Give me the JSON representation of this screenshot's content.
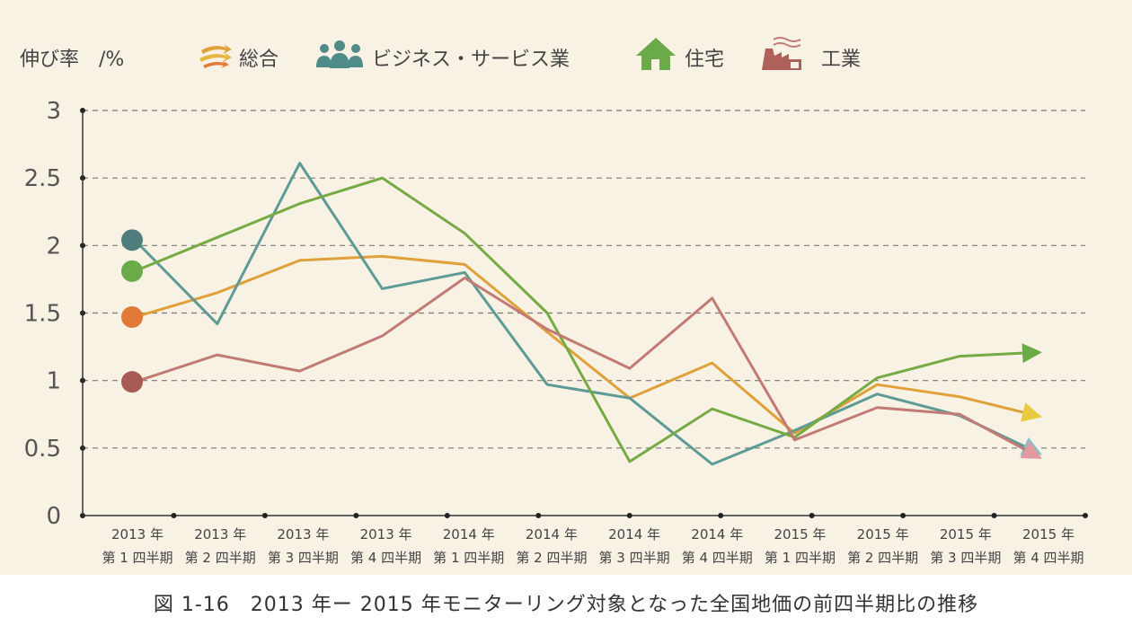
{
  "caption": "図 1-16　2013 年ー 2015 年モニターリング対象となった全国地価の前四半期比の推移",
  "chart_data": {
    "type": "line",
    "ylabel": "伸び率　/%",
    "ylim": [
      0,
      3
    ],
    "yticks": [
      "0",
      "0.5",
      "1",
      "1.5",
      "2",
      "2.5",
      "3"
    ],
    "ytick_values": [
      0,
      0.5,
      1,
      1.5,
      2,
      2.5,
      3
    ],
    "grid": true,
    "legend_position": "top",
    "categories": [
      [
        "2013 年",
        "第 1 四半期"
      ],
      [
        "2013 年",
        "第 2 四半期"
      ],
      [
        "2013 年",
        "第 3 四半期"
      ],
      [
        "2013 年",
        "第 4 四半期"
      ],
      [
        "2014 年",
        "第 1 四半期"
      ],
      [
        "2014 年",
        "第 2 四半期"
      ],
      [
        "2014 年",
        "第 3 四半期"
      ],
      [
        "2014 年",
        "第 4 四半期"
      ],
      [
        "2015 年",
        "第 1 四半期"
      ],
      [
        "2015 年",
        "第 2 四半期"
      ],
      [
        "2015 年",
        "第 3 四半期"
      ],
      [
        "2015 年",
        "第 4 四半期"
      ]
    ],
    "series": [
      {
        "name": "総合",
        "icon": "arrows-icon",
        "color": "#e0a03a",
        "start_color": "#e07a36",
        "end_color": "#e8cc40",
        "values": [
          1.47,
          1.65,
          1.89,
          1.92,
          1.86,
          1.36,
          0.87,
          1.13,
          0.61,
          0.97,
          0.88,
          0.73
        ]
      },
      {
        "name": "ビジネス・サービス業",
        "icon": "people-icon",
        "color": "#5f9b96",
        "start_color": "#4f7d7b",
        "end_color": "#7fc4cc",
        "values": [
          2.04,
          1.42,
          2.61,
          1.68,
          1.8,
          0.97,
          0.87,
          0.38,
          0.63,
          0.9,
          0.74,
          0.45
        ]
      },
      {
        "name": "住宅",
        "icon": "house-icon",
        "color": "#76ab44",
        "start_color": "#6aaa48",
        "end_color": "#6aaa48",
        "values": [
          1.81,
          2.06,
          2.31,
          2.5,
          2.09,
          1.5,
          0.4,
          0.79,
          0.58,
          1.02,
          1.18,
          1.21
        ]
      },
      {
        "name": "工業",
        "icon": "factory-icon",
        "color": "#c27b74",
        "start_color": "#a85a55",
        "end_color": "#e09aa0",
        "values": [
          0.99,
          1.19,
          1.07,
          1.33,
          1.76,
          1.38,
          1.09,
          1.61,
          0.56,
          0.8,
          0.75,
          0.42
        ]
      }
    ]
  }
}
